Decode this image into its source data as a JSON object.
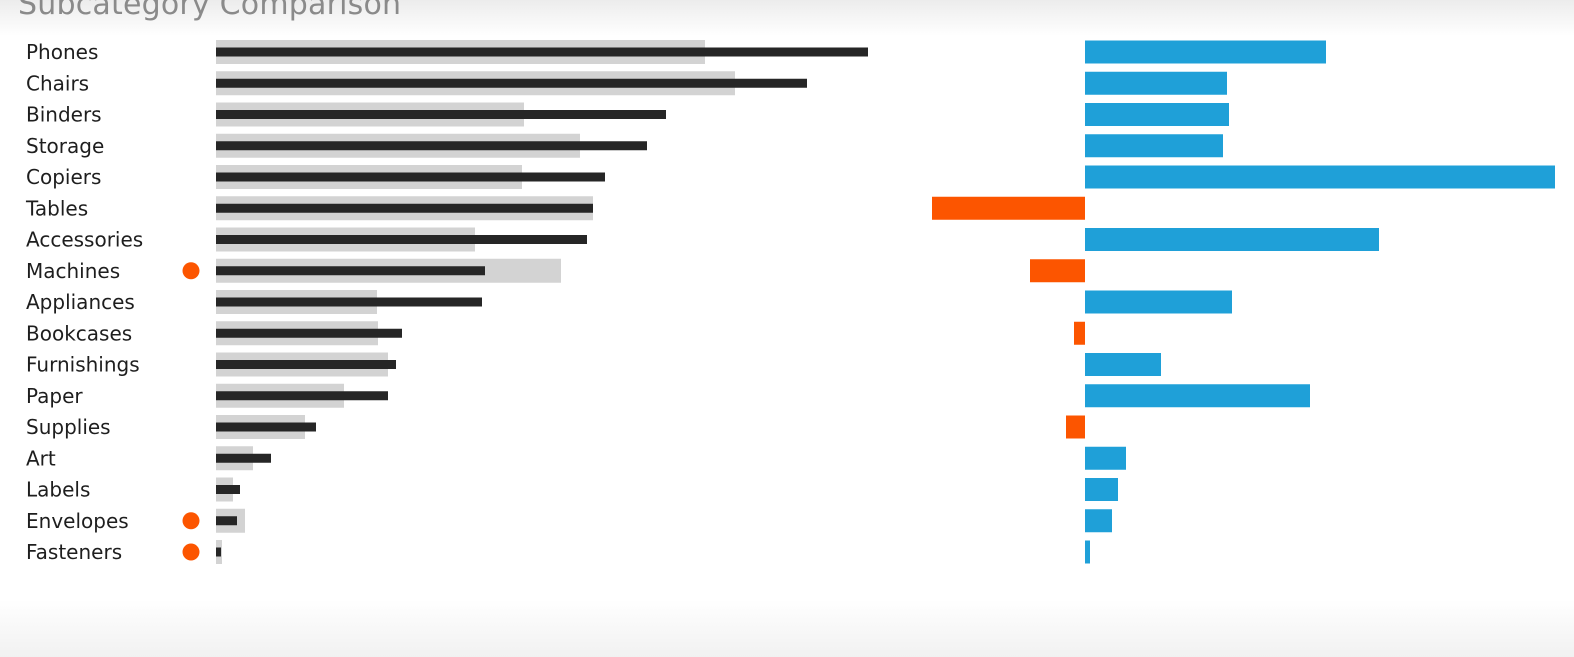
{
  "chart_data": {
    "type": "bar",
    "title": "Subcategory Comparison",
    "categories": [
      "Phones",
      "Chairs",
      "Binders",
      "Storage",
      "Copiers",
      "Tables",
      "Accessories",
      "Machines",
      "Appliances",
      "Bookcases",
      "Furnishings",
      "Paper",
      "Supplies",
      "Art",
      "Labels",
      "Envelopes",
      "Fasteners"
    ],
    "flagged": [
      "Machines",
      "Envelopes",
      "Fasteners"
    ],
    "series": [
      {
        "role": "background-bar",
        "values": [
          489,
          519,
          308,
          364,
          306,
          377,
          259,
          345,
          161,
          162,
          172,
          128,
          89,
          37,
          17,
          29,
          6
        ]
      },
      {
        "role": "foreground-bar",
        "values": [
          652,
          591,
          450,
          431,
          389,
          377,
          371,
          269,
          266,
          186,
          180,
          172,
          100,
          55,
          24,
          21,
          5
        ]
      },
      {
        "role": "diverging-bar",
        "values": [
          241,
          142,
          144,
          138,
          470,
          -153,
          294,
          -55,
          147,
          -11,
          76,
          225,
          -19,
          41,
          33,
          27,
          5
        ]
      }
    ],
    "colors": {
      "background_bar": "#d3d3d3",
      "foreground_bar": "#262626",
      "positive": "#1fa0d8",
      "negative": "#fc5500",
      "flag_dot": "#fc5500"
    },
    "grid": false,
    "legend": "none"
  }
}
